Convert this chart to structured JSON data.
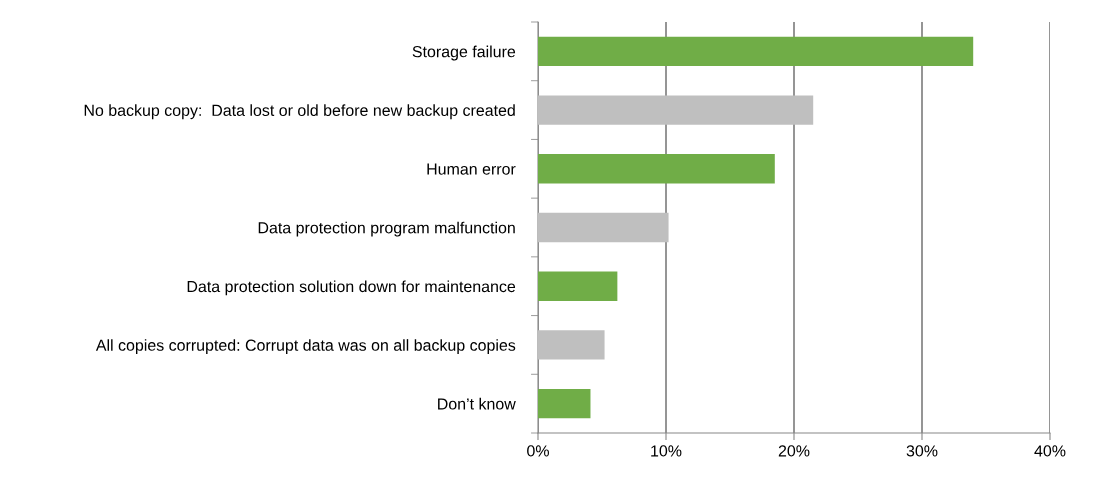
{
  "chart_data": {
    "type": "bar",
    "orientation": "horizontal",
    "categories": [
      "Storage failure",
      "No backup copy:  Data lost or old before new backup created",
      "Human error",
      "Data protection program malfunction",
      "Data protection solution down for maintenance",
      "All copies corrupted: Corrupt data was on all backup copies",
      "Don’t know"
    ],
    "values": [
      34.0,
      21.5,
      18.5,
      10.2,
      6.2,
      5.2,
      4.1
    ],
    "colors": [
      "#70ad47",
      "#bfbfbf",
      "#70ad47",
      "#bfbfbf",
      "#70ad47",
      "#bfbfbf",
      "#70ad47"
    ],
    "xlim": [
      0,
      40
    ],
    "xticks": [
      {
        "value": 0,
        "label": "0%"
      },
      {
        "value": 10,
        "label": "10%"
      },
      {
        "value": 20,
        "label": "20%"
      },
      {
        "value": 30,
        "label": "30%"
      },
      {
        "value": 40,
        "label": "40%"
      }
    ],
    "grid": "x"
  }
}
